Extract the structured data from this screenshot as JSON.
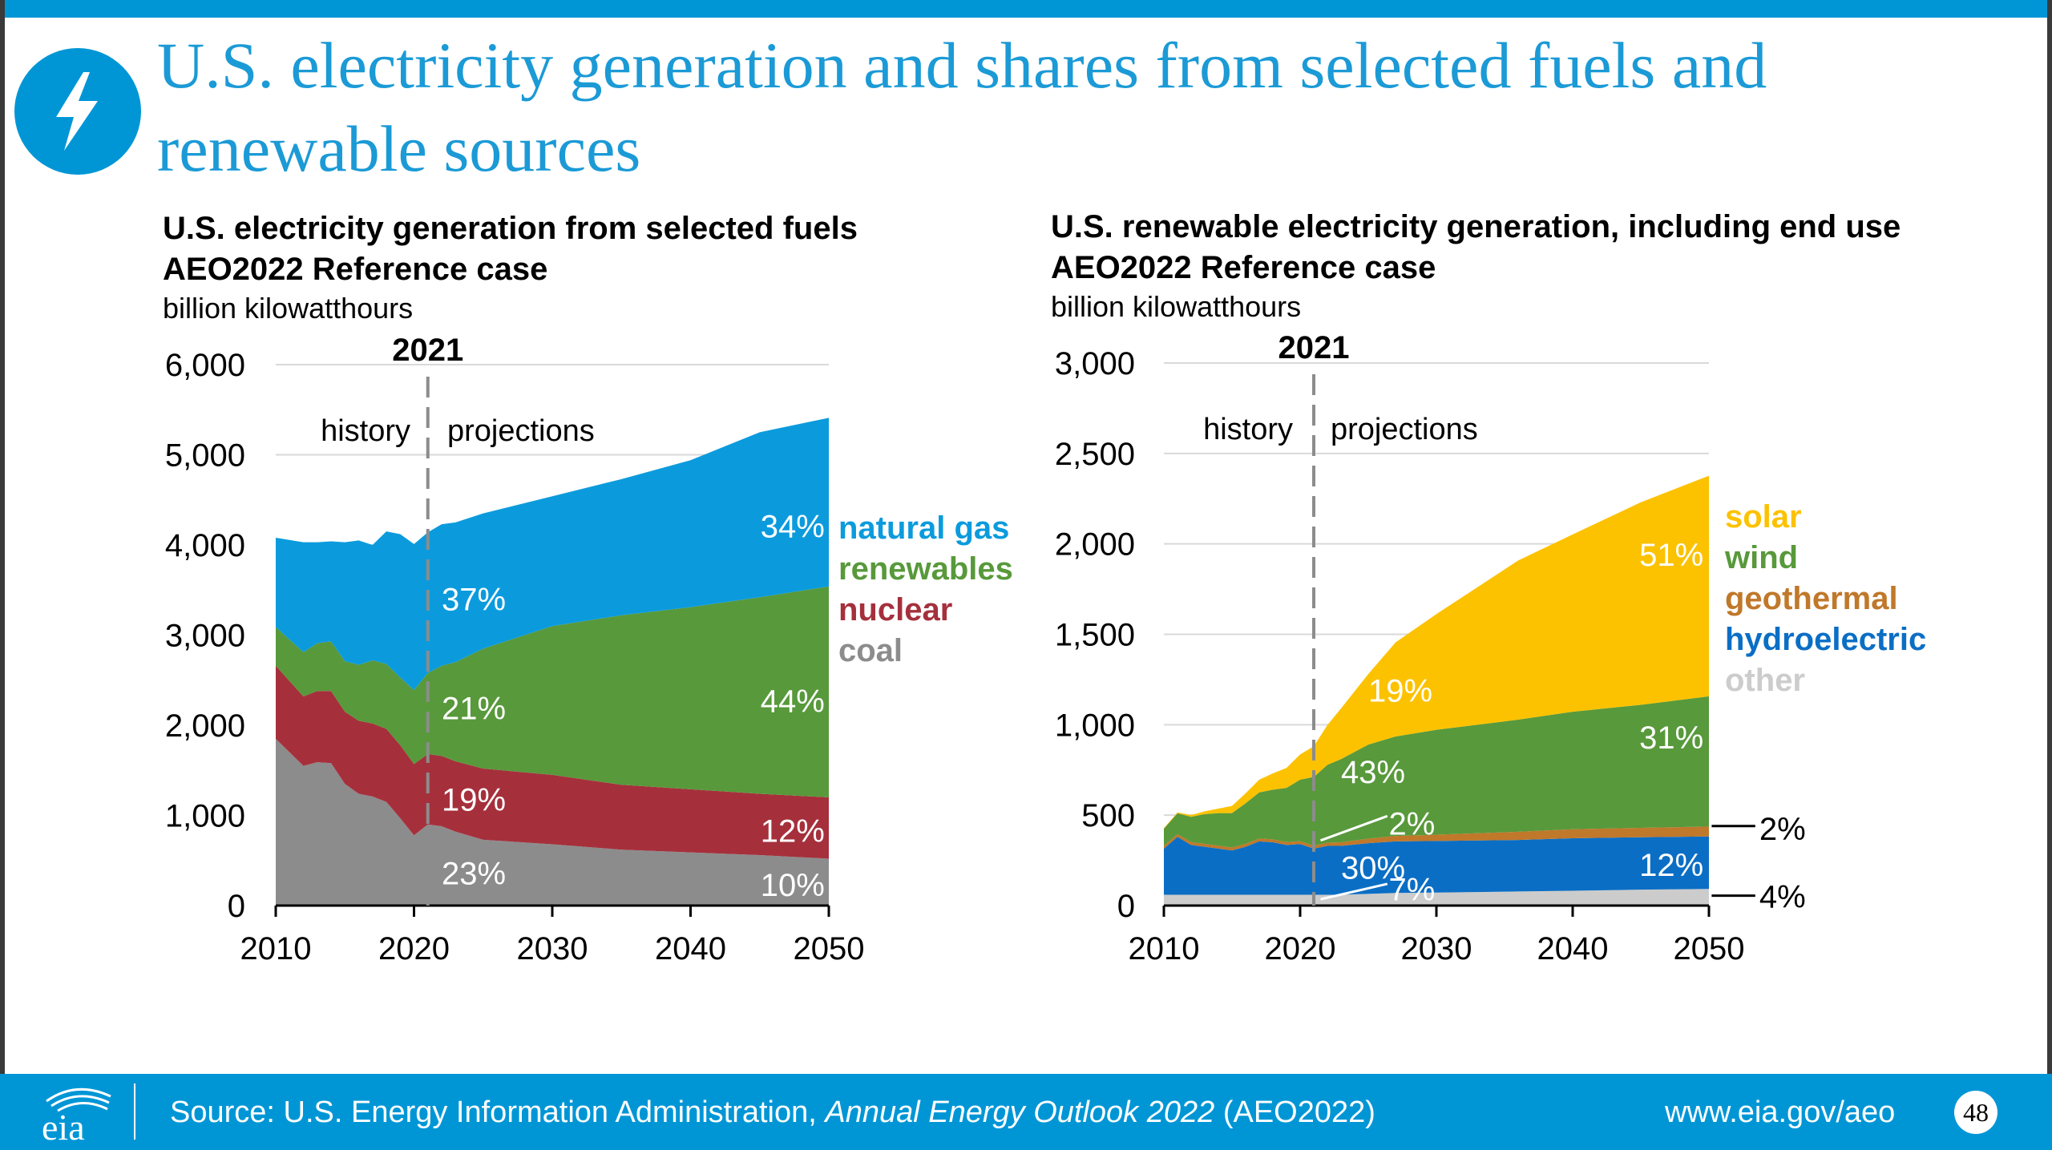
{
  "colors": {
    "brand_blue": "#0096d6",
    "title_blue": "#1b9ad6",
    "gas": "#0b9bdd",
    "renewables": "#58993b",
    "nuclear": "#a5303c",
    "coal": "#8c8c8c",
    "solar": "#fcc200",
    "wind": "#58993b",
    "geothermal": "#c0782a",
    "hydro": "#0b6ec5",
    "other": "#cccccc",
    "grid": "#d9d9d9",
    "axis": "#000000"
  },
  "slide": {
    "title": "U.S. electricity generation and shares from selected fuels and renewable sources",
    "icon": "lightning-bolt-icon",
    "page_number": "48"
  },
  "footer": {
    "logo_text": "eia",
    "source_prefix": "Source: U.S. Energy Information Administration, ",
    "source_italic": "Annual Energy Outlook 2022",
    "source_suffix": " (AEO2022)",
    "url": "www.eia.gov/aeo"
  },
  "chart_data": [
    {
      "type": "area",
      "stacked": true,
      "title": "U.S. electricity generation from selected fuels",
      "subtitle": "AEO2022 Reference case",
      "ylabel": "billion kilowatthours",
      "xlim": [
        2010,
        2050
      ],
      "ylim": [
        0,
        6000
      ],
      "yticks": [
        0,
        1000,
        2000,
        3000,
        4000,
        5000,
        6000
      ],
      "xticks": [
        2010,
        2020,
        2030,
        2040,
        2050
      ],
      "ytick_labels": [
        "0",
        "1,000",
        "2,000",
        "3,000",
        "4,000",
        "5,000",
        "6,000"
      ],
      "xtick_labels": [
        "2010",
        "2020",
        "2030",
        "2040",
        "2050"
      ],
      "grid": true,
      "divider": {
        "x": 2021,
        "label": "2021",
        "left_label": "history",
        "right_label": "projections"
      },
      "legend_position": "right",
      "x": [
        2010,
        2012,
        2013,
        2014,
        2015,
        2016,
        2017,
        2018,
        2019,
        2020,
        2021,
        2022,
        2023,
        2025,
        2030,
        2035,
        2040,
        2045,
        2050
      ],
      "series": [
        {
          "name": "coal",
          "color_key": "coal",
          "values": [
            1850,
            1550,
            1590,
            1580,
            1350,
            1240,
            1210,
            1150,
            970,
            780,
            900,
            880,
            820,
            730,
            680,
            620,
            590,
            560,
            520
          ]
        },
        {
          "name": "nuclear",
          "color_key": "nuclear",
          "values": [
            810,
            770,
            790,
            800,
            800,
            810,
            810,
            810,
            810,
            790,
            780,
            780,
            780,
            790,
            770,
            720,
            700,
            680,
            680
          ]
        },
        {
          "name": "renewables",
          "color_key": "renewables",
          "values": [
            430,
            490,
            530,
            550,
            560,
            620,
            700,
            720,
            750,
            820,
            900,
            1000,
            1100,
            1330,
            1650,
            1880,
            2020,
            2180,
            2340
          ]
        },
        {
          "name": "natural gas",
          "color_key": "gas",
          "values": [
            990,
            1220,
            1120,
            1110,
            1320,
            1380,
            1280,
            1470,
            1590,
            1620,
            1560,
            1570,
            1550,
            1500,
            1440,
            1510,
            1630,
            1830,
            1870
          ]
        }
      ],
      "legend": [
        "natural gas",
        "renewables",
        "nuclear",
        "coal"
      ],
      "annotations": [
        {
          "text": "37%",
          "x": 2022.0,
          "y": 3400,
          "color": "#ffffff",
          "anchor": "start"
        },
        {
          "text": "21%",
          "x": 2022.0,
          "y": 2190,
          "color": "#ffffff",
          "anchor": "start"
        },
        {
          "text": "19%",
          "x": 2022.0,
          "y": 1180,
          "color": "#ffffff",
          "anchor": "start"
        },
        {
          "text": "23%",
          "x": 2022.0,
          "y": 360,
          "color": "#ffffff",
          "anchor": "start"
        },
        {
          "text": "34%",
          "x": 2049.7,
          "y": 4210,
          "color": "#ffffff",
          "anchor": "end"
        },
        {
          "text": "44%",
          "x": 2049.7,
          "y": 2270,
          "color": "#ffffff",
          "anchor": "end"
        },
        {
          "text": "12%",
          "x": 2049.7,
          "y": 830,
          "color": "#ffffff",
          "anchor": "end"
        },
        {
          "text": "10%",
          "x": 2049.7,
          "y": 230,
          "color": "#ffffff",
          "anchor": "end"
        }
      ]
    },
    {
      "type": "area",
      "stacked": true,
      "title": "U.S. renewable electricity generation, including end use",
      "subtitle": "AEO2022 Reference case",
      "ylabel": "billion kilowatthours",
      "xlim": [
        2010,
        2050
      ],
      "ylim": [
        0,
        3000
      ],
      "yticks": [
        0,
        500,
        1000,
        1500,
        2000,
        2500,
        3000
      ],
      "xticks": [
        2010,
        2020,
        2030,
        2040,
        2050
      ],
      "ytick_labels": [
        "0",
        "500",
        "1,000",
        "1,500",
        "2,000",
        "2,500",
        "3,000"
      ],
      "xtick_labels": [
        "2010",
        "2020",
        "2030",
        "2040",
        "2050"
      ],
      "grid": true,
      "divider": {
        "x": 2021,
        "label": "2021",
        "left_label": "history",
        "right_label": "projections"
      },
      "legend_position": "right",
      "x": [
        2010,
        2011,
        2012,
        2013,
        2014,
        2015,
        2016,
        2017,
        2018,
        2019,
        2020,
        2021,
        2022,
        2023,
        2025,
        2027,
        2030,
        2033,
        2036,
        2040,
        2045,
        2050
      ],
      "series": [
        {
          "name": "other",
          "color_key": "other",
          "values": [
            60,
            60,
            60,
            60,
            60,
            60,
            60,
            60,
            60,
            60,
            60,
            60,
            60,
            60,
            65,
            70,
            72,
            75,
            78,
            82,
            88,
            92
          ]
        },
        {
          "name": "hydroelectric",
          "color_key": "hydro",
          "values": [
            255,
            320,
            275,
            265,
            255,
            245,
            265,
            295,
            290,
            275,
            280,
            255,
            270,
            270,
            280,
            285,
            285,
            285,
            285,
            290,
            290,
            290
          ]
        },
        {
          "name": "geothermal",
          "color_key": "geothermal",
          "values": [
            15,
            15,
            16,
            16,
            16,
            16,
            16,
            16,
            16,
            16,
            16,
            16,
            18,
            20,
            25,
            30,
            35,
            40,
            45,
            50,
            52,
            55
          ]
        },
        {
          "name": "wind",
          "color_key": "wind",
          "values": [
            95,
            115,
            140,
            165,
            180,
            190,
            225,
            255,
            275,
            300,
            340,
            380,
            430,
            460,
            520,
            550,
            580,
            600,
            620,
            650,
            680,
            720
          ]
        },
        {
          "name": "solar",
          "color_key": "solar",
          "values": [
            3,
            5,
            10,
            15,
            25,
            40,
            55,
            70,
            90,
            110,
            140,
            170,
            220,
            280,
            390,
            520,
            640,
            760,
            880,
            980,
            1120,
            1220
          ]
        }
      ],
      "legend": [
        "solar",
        "wind",
        "geothermal",
        "hydroelectric",
        "other"
      ],
      "annotations": [
        {
          "text": "19%",
          "x": 2025.0,
          "y": 1190,
          "color": "#ffffff",
          "anchor": "start"
        },
        {
          "text": "43%",
          "x": 2023.0,
          "y": 740,
          "color": "#ffffff",
          "anchor": "start"
        },
        {
          "text": "2%",
          "x": 2026.5,
          "y": 455,
          "color": "#ffffff",
          "anchor": "start"
        },
        {
          "text": "30%",
          "x": 2023.0,
          "y": 210,
          "color": "#ffffff",
          "anchor": "start"
        },
        {
          "text": "7%",
          "x": 2026.5,
          "y": 90,
          "color": "#ffffff",
          "anchor": "start"
        },
        {
          "text": "51%",
          "x": 2049.6,
          "y": 1940,
          "color": "#ffffff",
          "anchor": "end"
        },
        {
          "text": "31%",
          "x": 2049.6,
          "y": 930,
          "color": "#ffffff",
          "anchor": "end"
        },
        {
          "text": "12%",
          "x": 2049.6,
          "y": 225,
          "color": "#ffffff",
          "anchor": "end"
        },
        {
          "text": "2%",
          "x": 2053.7,
          "y": 425,
          "color": "#000000",
          "anchor": "start"
        },
        {
          "text": "4%",
          "x": 2053.7,
          "y": 50,
          "color": "#000000",
          "anchor": "start"
        }
      ],
      "leaders": [
        {
          "from": [
            2021.5,
            360
          ],
          "to": [
            2026.4,
            495
          ]
        },
        {
          "from": [
            2021.5,
            35
          ],
          "to": [
            2026.4,
            120
          ]
        },
        {
          "from": [
            2050.2,
            440
          ],
          "to": [
            2053.4,
            440
          ]
        },
        {
          "from": [
            2050.2,
            55
          ],
          "to": [
            2053.4,
            55
          ]
        }
      ]
    }
  ]
}
